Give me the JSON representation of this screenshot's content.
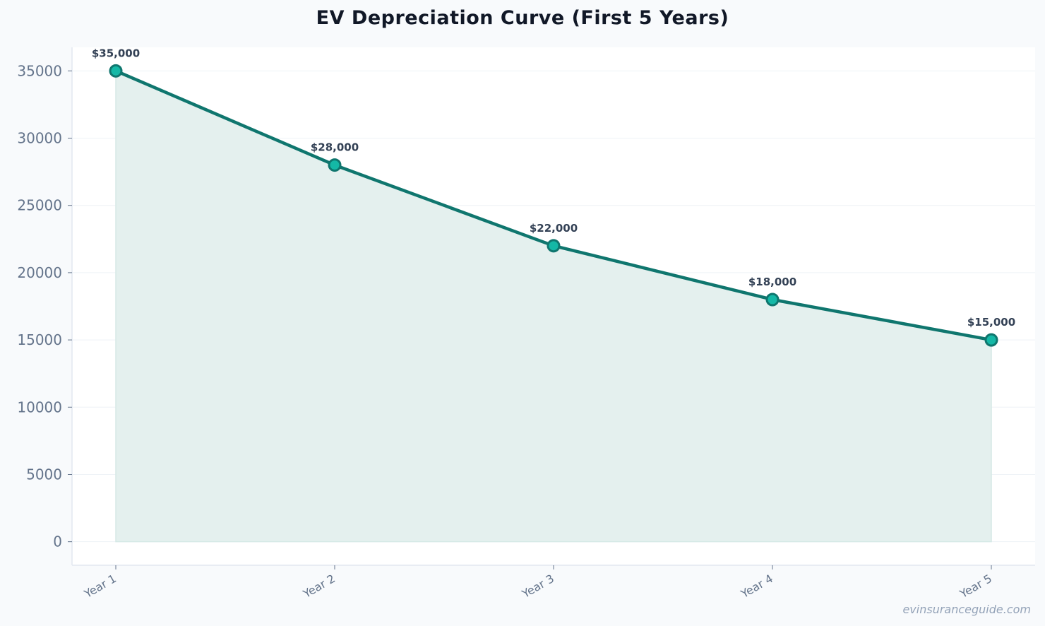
{
  "chart_data": {
    "type": "area",
    "title": "EV Depreciation Curve (First 5 Years)",
    "xlabel": "",
    "ylabel": "",
    "categories": [
      "Year 1",
      "Year 2",
      "Year 3",
      "Year 4",
      "Year 5"
    ],
    "values": [
      35000,
      28000,
      22000,
      18000,
      15000
    ],
    "data_labels": [
      "$35,000",
      "$28,000",
      "$22,000",
      "$18,000",
      "$15,000"
    ],
    "yticks": [
      0,
      5000,
      10000,
      15000,
      20000,
      25000,
      30000,
      35000
    ],
    "ylim": [
      -1750,
      36750
    ],
    "grid": true,
    "colors": {
      "line": "#0f766e",
      "marker_fill": "#14b8a6",
      "area_fill": "#e4f0ee"
    }
  },
  "watermark": "evinsuranceguide.com"
}
